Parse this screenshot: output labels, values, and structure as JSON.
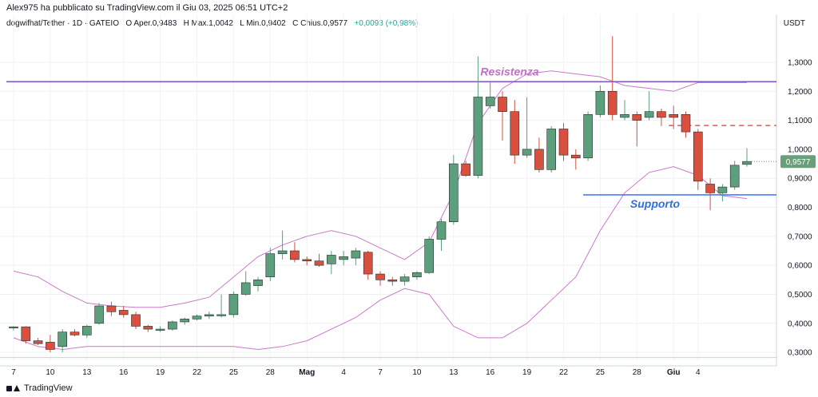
{
  "header": {
    "publisher_line": "Alex975 ha pubblicato su TradingView.com il Giu 03, 2025 06:51 UTC+2",
    "symbol": "dogwifhat/Tether · 1D · GATEIO",
    "ohlc": {
      "open_label": "O",
      "open": "Aper.0,9483",
      "high_label": "H",
      "high": "Max.1,0042",
      "low_label": "L",
      "low": "Min.0,9402",
      "close_label": "C",
      "close": "Chius.0,9577",
      "change": "+0,0093 (+0,98%)"
    },
    "currency": "USDT"
  },
  "footer": {
    "logo_text": "TradingView"
  },
  "colors": {
    "up": "#5b9f7d",
    "down": "#d9503f",
    "bollinger": "#cc77cc",
    "resistance": "#7e57c2",
    "support": "#2962ff",
    "last_price_tag": "#6a9f7c",
    "red_dash": "#f05050"
  },
  "chart_data": {
    "type": "candlestick",
    "y_range": [
      0.27,
      1.41
    ],
    "y_ticks": [
      "1,3000",
      "1,2000",
      "1,1000",
      "1,0000",
      "0,9000",
      "0,8000",
      "0,7000",
      "0,6000",
      "0,5000",
      "0,4000",
      "0,3000"
    ],
    "y_tick_values": [
      1.3,
      1.2,
      1.1,
      1.0,
      0.9,
      0.8,
      0.7,
      0.6,
      0.5,
      0.4,
      0.3
    ],
    "x_labels": [
      {
        "i": 0,
        "label": "7"
      },
      {
        "i": 3,
        "label": "10"
      },
      {
        "i": 6,
        "label": "13"
      },
      {
        "i": 9,
        "label": "16"
      },
      {
        "i": 12,
        "label": "19"
      },
      {
        "i": 15,
        "label": "22"
      },
      {
        "i": 18,
        "label": "25"
      },
      {
        "i": 21,
        "label": "28"
      },
      {
        "i": 24,
        "label": "Mag"
      },
      {
        "i": 27,
        "label": "4"
      },
      {
        "i": 30,
        "label": "7"
      },
      {
        "i": 33,
        "label": "10"
      },
      {
        "i": 36,
        "label": "13"
      },
      {
        "i": 39,
        "label": "16"
      },
      {
        "i": 42,
        "label": "19"
      },
      {
        "i": 45,
        "label": "22"
      },
      {
        "i": 48,
        "label": "25"
      },
      {
        "i": 51,
        "label": "28"
      },
      {
        "i": 54,
        "label": "Giu"
      },
      {
        "i": 56,
        "label": "4"
      }
    ],
    "candles": [
      {
        "o": 0.385,
        "h": 0.39,
        "l": 0.375,
        "c": 0.388
      },
      {
        "o": 0.388,
        "h": 0.39,
        "l": 0.33,
        "c": 0.34
      },
      {
        "o": 0.34,
        "h": 0.35,
        "l": 0.325,
        "c": 0.33
      },
      {
        "o": 0.335,
        "h": 0.36,
        "l": 0.3,
        "c": 0.31
      },
      {
        "o": 0.32,
        "h": 0.38,
        "l": 0.3,
        "c": 0.37
      },
      {
        "o": 0.37,
        "h": 0.38,
        "l": 0.355,
        "c": 0.36
      },
      {
        "o": 0.36,
        "h": 0.395,
        "l": 0.35,
        "c": 0.39
      },
      {
        "o": 0.4,
        "h": 0.47,
        "l": 0.395,
        "c": 0.46
      },
      {
        "o": 0.46,
        "h": 0.475,
        "l": 0.425,
        "c": 0.44
      },
      {
        "o": 0.445,
        "h": 0.46,
        "l": 0.42,
        "c": 0.43
      },
      {
        "o": 0.43,
        "h": 0.44,
        "l": 0.38,
        "c": 0.39
      },
      {
        "o": 0.39,
        "h": 0.395,
        "l": 0.37,
        "c": 0.38
      },
      {
        "o": 0.38,
        "h": 0.39,
        "l": 0.37,
        "c": 0.38
      },
      {
        "o": 0.38,
        "h": 0.41,
        "l": 0.375,
        "c": 0.405
      },
      {
        "o": 0.405,
        "h": 0.42,
        "l": 0.395,
        "c": 0.415
      },
      {
        "o": 0.415,
        "h": 0.43,
        "l": 0.41,
        "c": 0.425
      },
      {
        "o": 0.425,
        "h": 0.44,
        "l": 0.415,
        "c": 0.43
      },
      {
        "o": 0.43,
        "h": 0.5,
        "l": 0.42,
        "c": 0.43
      },
      {
        "o": 0.43,
        "h": 0.51,
        "l": 0.42,
        "c": 0.5
      },
      {
        "o": 0.5,
        "h": 0.58,
        "l": 0.495,
        "c": 0.54
      },
      {
        "o": 0.53,
        "h": 0.56,
        "l": 0.51,
        "c": 0.55
      },
      {
        "o": 0.56,
        "h": 0.66,
        "l": 0.545,
        "c": 0.64
      },
      {
        "o": 0.64,
        "h": 0.72,
        "l": 0.62,
        "c": 0.65
      },
      {
        "o": 0.65,
        "h": 0.68,
        "l": 0.61,
        "c": 0.62
      },
      {
        "o": 0.62,
        "h": 0.63,
        "l": 0.6,
        "c": 0.615
      },
      {
        "o": 0.615,
        "h": 0.64,
        "l": 0.595,
        "c": 0.6
      },
      {
        "o": 0.605,
        "h": 0.65,
        "l": 0.57,
        "c": 0.635
      },
      {
        "o": 0.62,
        "h": 0.65,
        "l": 0.6,
        "c": 0.63
      },
      {
        "o": 0.625,
        "h": 0.66,
        "l": 0.6,
        "c": 0.65
      },
      {
        "o": 0.645,
        "h": 0.65,
        "l": 0.55,
        "c": 0.57
      },
      {
        "o": 0.57,
        "h": 0.58,
        "l": 0.53,
        "c": 0.55
      },
      {
        "o": 0.55,
        "h": 0.56,
        "l": 0.53,
        "c": 0.545
      },
      {
        "o": 0.545,
        "h": 0.57,
        "l": 0.53,
        "c": 0.56
      },
      {
        "o": 0.56,
        "h": 0.58,
        "l": 0.55,
        "c": 0.575
      },
      {
        "o": 0.575,
        "h": 0.7,
        "l": 0.57,
        "c": 0.69
      },
      {
        "o": 0.69,
        "h": 0.76,
        "l": 0.65,
        "c": 0.75
      },
      {
        "o": 0.75,
        "h": 0.98,
        "l": 0.74,
        "c": 0.95
      },
      {
        "o": 0.95,
        "h": 0.96,
        "l": 0.905,
        "c": 0.91
      },
      {
        "o": 0.91,
        "h": 1.32,
        "l": 0.9,
        "c": 1.18
      },
      {
        "o": 1.15,
        "h": 1.23,
        "l": 1.14,
        "c": 1.18
      },
      {
        "o": 1.18,
        "h": 1.2,
        "l": 1.03,
        "c": 1.13
      },
      {
        "o": 1.13,
        "h": 1.17,
        "l": 0.95,
        "c": 0.98
      },
      {
        "o": 0.98,
        "h": 1.18,
        "l": 0.97,
        "c": 1.0
      },
      {
        "o": 1.0,
        "h": 1.04,
        "l": 0.92,
        "c": 0.93
      },
      {
        "o": 0.93,
        "h": 1.08,
        "l": 0.92,
        "c": 1.07
      },
      {
        "o": 1.07,
        "h": 1.09,
        "l": 0.96,
        "c": 0.98
      },
      {
        "o": 0.98,
        "h": 1.0,
        "l": 0.93,
        "c": 0.97
      },
      {
        "o": 0.97,
        "h": 1.13,
        "l": 0.96,
        "c": 1.12
      },
      {
        "o": 1.12,
        "h": 1.22,
        "l": 1.11,
        "c": 1.2
      },
      {
        "o": 1.2,
        "h": 1.39,
        "l": 1.1,
        "c": 1.12
      },
      {
        "o": 1.11,
        "h": 1.17,
        "l": 1.1,
        "c": 1.12
      },
      {
        "o": 1.12,
        "h": 1.13,
        "l": 1.01,
        "c": 1.1
      },
      {
        "o": 1.11,
        "h": 1.2,
        "l": 1.1,
        "c": 1.13
      },
      {
        "o": 1.13,
        "h": 1.14,
        "l": 1.08,
        "c": 1.11
      },
      {
        "o": 1.12,
        "h": 1.15,
        "l": 1.07,
        "c": 1.11
      },
      {
        "o": 1.12,
        "h": 1.13,
        "l": 1.04,
        "c": 1.06
      },
      {
        "o": 1.06,
        "h": 1.07,
        "l": 0.86,
        "c": 0.89
      },
      {
        "o": 0.88,
        "h": 0.9,
        "l": 0.79,
        "c": 0.85
      },
      {
        "o": 0.85,
        "h": 0.88,
        "l": 0.82,
        "c": 0.87
      },
      {
        "o": 0.87,
        "h": 0.96,
        "l": 0.86,
        "c": 0.945
      },
      {
        "o": 0.948,
        "h": 1.004,
        "l": 0.94,
        "c": 0.958
      }
    ],
    "bollinger": {
      "upper": [
        {
          "i": 0,
          "v": 0.58
        },
        {
          "i": 2,
          "v": 0.56
        },
        {
          "i": 4,
          "v": 0.51
        },
        {
          "i": 6,
          "v": 0.47
        },
        {
          "i": 8,
          "v": 0.46
        },
        {
          "i": 10,
          "v": 0.455
        },
        {
          "i": 12,
          "v": 0.455
        },
        {
          "i": 14,
          "v": 0.47
        },
        {
          "i": 16,
          "v": 0.49
        },
        {
          "i": 18,
          "v": 0.56
        },
        {
          "i": 20,
          "v": 0.63
        },
        {
          "i": 22,
          "v": 0.67
        },
        {
          "i": 24,
          "v": 0.7
        },
        {
          "i": 26,
          "v": 0.72
        },
        {
          "i": 28,
          "v": 0.7
        },
        {
          "i": 30,
          "v": 0.66
        },
        {
          "i": 32,
          "v": 0.62
        },
        {
          "i": 34,
          "v": 0.68
        },
        {
          "i": 36,
          "v": 0.85
        },
        {
          "i": 38,
          "v": 1.09
        },
        {
          "i": 40,
          "v": 1.21
        },
        {
          "i": 42,
          "v": 1.26
        },
        {
          "i": 44,
          "v": 1.27
        },
        {
          "i": 46,
          "v": 1.26
        },
        {
          "i": 48,
          "v": 1.25
        },
        {
          "i": 50,
          "v": 1.22
        },
        {
          "i": 52,
          "v": 1.21
        },
        {
          "i": 54,
          "v": 1.2
        },
        {
          "i": 56,
          "v": 1.23
        },
        {
          "i": 58,
          "v": 1.23
        },
        {
          "i": 60,
          "v": 1.23
        }
      ],
      "lower": [
        {
          "i": 0,
          "v": 0.35
        },
        {
          "i": 2,
          "v": 0.32
        },
        {
          "i": 4,
          "v": 0.31
        },
        {
          "i": 6,
          "v": 0.32
        },
        {
          "i": 8,
          "v": 0.32
        },
        {
          "i": 10,
          "v": 0.32
        },
        {
          "i": 12,
          "v": 0.32
        },
        {
          "i": 14,
          "v": 0.32
        },
        {
          "i": 16,
          "v": 0.32
        },
        {
          "i": 18,
          "v": 0.32
        },
        {
          "i": 20,
          "v": 0.31
        },
        {
          "i": 22,
          "v": 0.32
        },
        {
          "i": 24,
          "v": 0.34
        },
        {
          "i": 26,
          "v": 0.38
        },
        {
          "i": 28,
          "v": 0.42
        },
        {
          "i": 30,
          "v": 0.48
        },
        {
          "i": 32,
          "v": 0.52
        },
        {
          "i": 34,
          "v": 0.5
        },
        {
          "i": 36,
          "v": 0.39
        },
        {
          "i": 38,
          "v": 0.35
        },
        {
          "i": 40,
          "v": 0.35
        },
        {
          "i": 42,
          "v": 0.4
        },
        {
          "i": 44,
          "v": 0.48
        },
        {
          "i": 46,
          "v": 0.56
        },
        {
          "i": 48,
          "v": 0.72
        },
        {
          "i": 50,
          "v": 0.85
        },
        {
          "i": 52,
          "v": 0.92
        },
        {
          "i": 54,
          "v": 0.94
        },
        {
          "i": 56,
          "v": 0.91
        },
        {
          "i": 58,
          "v": 0.84
        },
        {
          "i": 60,
          "v": 0.83
        }
      ]
    },
    "resistance": {
      "value": 1.233,
      "label": "Resistenza"
    },
    "support": {
      "value": 0.843,
      "label": "Supporto",
      "from_i": 47,
      "to_i": 61
    },
    "red_dash": {
      "value": 1.082,
      "from_i": 54
    },
    "last_price": {
      "value": 0.9577,
      "label": "0,9577"
    }
  }
}
